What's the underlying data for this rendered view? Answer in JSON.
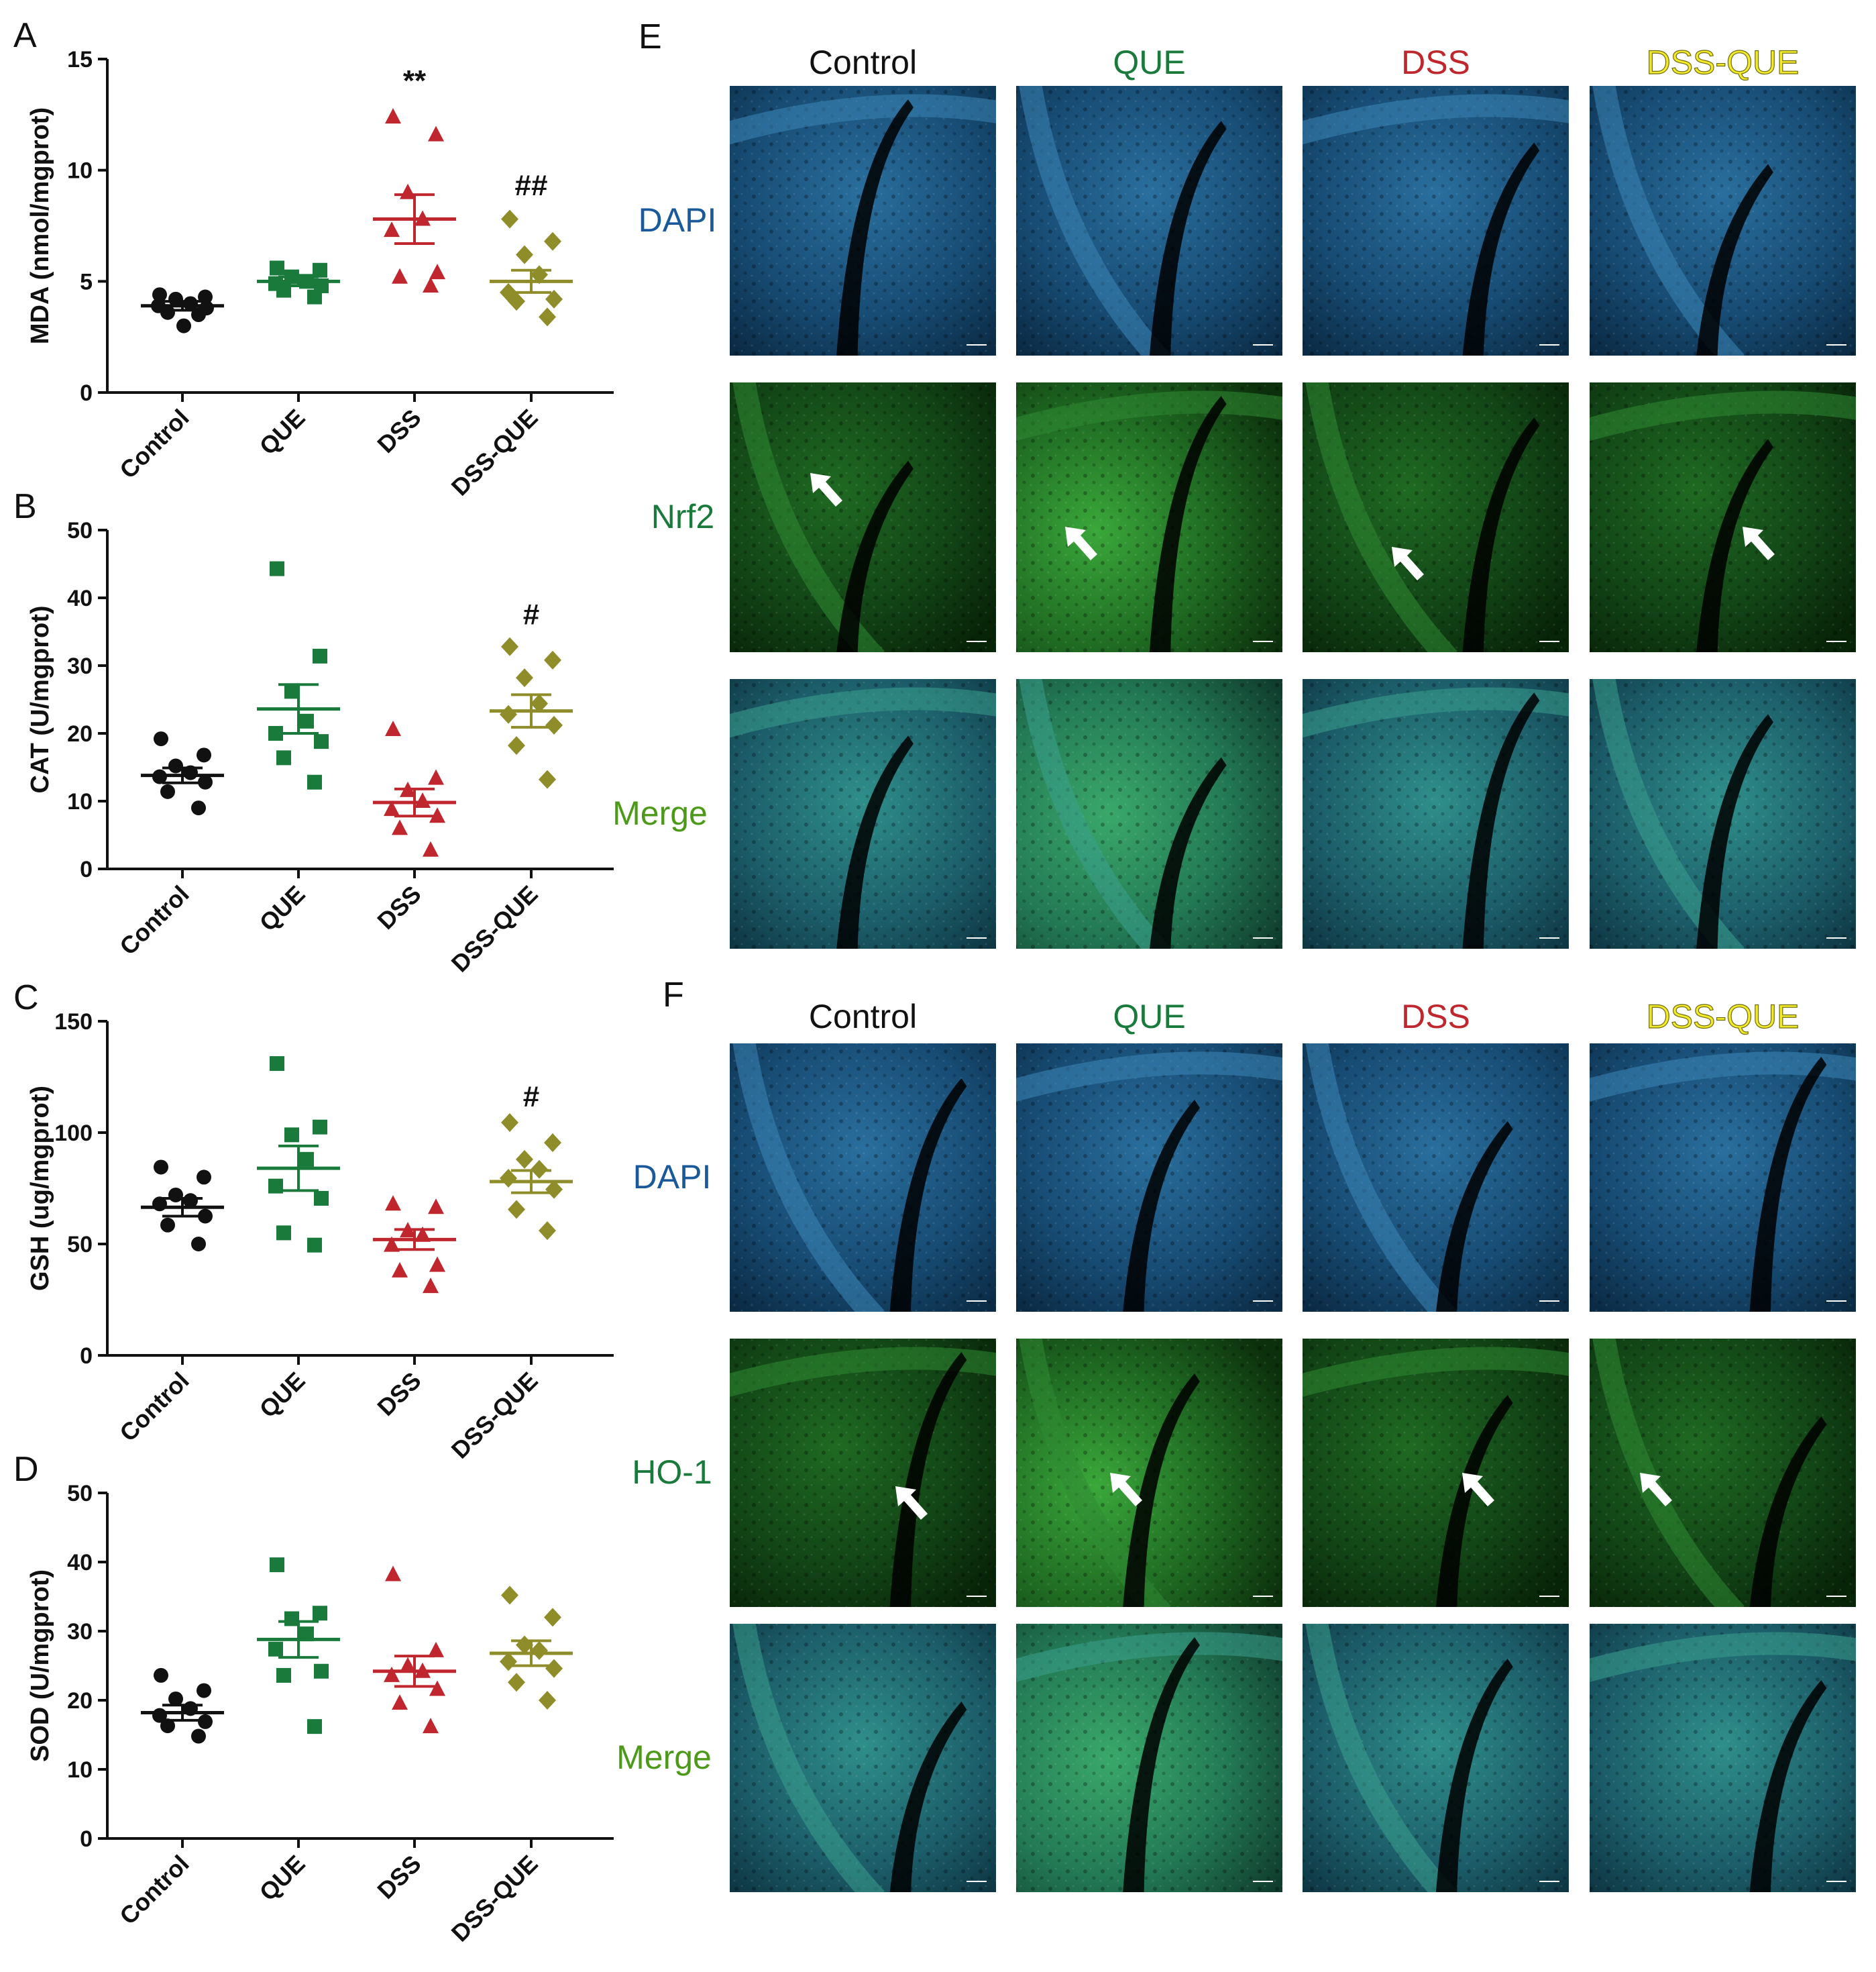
{
  "colors": {
    "Control": "#111111",
    "QUE": "#1a7a3c",
    "DSS": "#c0262d",
    "DSS-QUE": "#8f8c2a",
    "dapi_label": "#1a5a9a",
    "green_label": "#1a7a3c",
    "merge_label": "#4d9a1a"
  },
  "panel_letters": {
    "A": "A",
    "B": "B",
    "C": "C",
    "D": "D",
    "E": "E",
    "F": "F"
  },
  "chart_data": [
    {
      "panel": "A",
      "type": "scatter",
      "ylabel": "MDA (nmol/mgprot)",
      "ylim": [
        0,
        15
      ],
      "yticks": [
        0,
        5,
        10,
        15
      ],
      "categories": [
        "Control",
        "QUE",
        "DSS",
        "DSS-QUE"
      ],
      "markers": [
        "circle",
        "square",
        "triangle",
        "diamond"
      ],
      "points": [
        [
          4.4,
          4.3,
          4.2,
          4.0,
          3.9,
          3.8,
          3.6,
          3.5,
          3.0
        ],
        [
          5.6,
          5.5,
          5.2,
          5.0,
          4.9,
          4.8,
          4.6,
          4.3
        ],
        [
          12.4,
          11.6,
          9.0,
          7.8,
          7.3,
          5.4,
          5.2,
          4.8
        ],
        [
          7.8,
          6.8,
          6.2,
          5.3,
          4.5,
          4.2,
          4.1,
          3.4
        ]
      ],
      "mean": [
        3.9,
        5.0,
        7.8,
        5.0
      ],
      "sem": [
        0.2,
        0.2,
        1.1,
        0.5
      ],
      "annotations": [
        {
          "category": "DSS",
          "text": "**",
          "y": 14.0
        },
        {
          "category": "DSS-QUE",
          "text": "##",
          "y": 9.3
        }
      ]
    },
    {
      "panel": "B",
      "type": "scatter",
      "ylabel": "CAT (U/mgprot)",
      "ylim": [
        0,
        50
      ],
      "yticks": [
        0,
        10,
        20,
        30,
        40,
        50
      ],
      "categories": [
        "Control",
        "QUE",
        "DSS",
        "DSS-QUE"
      ],
      "markers": [
        "circle",
        "square",
        "triangle",
        "diamond"
      ],
      "points": [
        [
          19.2,
          16.8,
          15.2,
          14.2,
          13.6,
          12.8,
          11.4,
          9.0
        ],
        [
          44.3,
          31.4,
          26.2,
          21.8,
          20.0,
          18.8,
          16.4,
          12.8
        ],
        [
          20.6,
          13.4,
          11.6,
          10.0,
          8.8,
          7.8,
          6.0,
          2.8
        ],
        [
          32.8,
          30.8,
          28.2,
          24.4,
          22.8,
          21.2,
          18.2,
          13.2
        ]
      ],
      "mean": [
        13.8,
        23.6,
        9.8,
        23.3
      ],
      "sem": [
        1.1,
        3.6,
        2.0,
        2.4
      ],
      "annotations": [
        {
          "category": "DSS-QUE",
          "text": "#",
          "y": 37.5
        }
      ]
    },
    {
      "panel": "C",
      "type": "scatter",
      "ylabel": "GSH (ug/mgprot)",
      "ylim": [
        0,
        150
      ],
      "yticks": [
        0,
        50,
        100,
        150
      ],
      "categories": [
        "Control",
        "QUE",
        "DSS",
        "DSS-QUE"
      ],
      "markers": [
        "circle",
        "square",
        "triangle",
        "diamond"
      ],
      "points": [
        [
          84.5,
          80.0,
          72.0,
          69.5,
          68.0,
          62.5,
          58.5,
          50.0
        ],
        [
          131.0,
          102.5,
          99.0,
          88.0,
          76.0,
          70.5,
          55.0,
          49.5
        ],
        [
          68.0,
          66.5,
          56.0,
          54.0,
          49.5,
          40.5,
          38.0,
          31.0
        ],
        [
          104.5,
          95.5,
          88.0,
          83.5,
          79.5,
          74.5,
          65.5,
          56.0
        ]
      ],
      "mean": [
        66.5,
        84.0,
        52.0,
        78.0
      ],
      "sem": [
        4.0,
        10.0,
        4.5,
        5.0
      ],
      "annotations": [
        {
          "category": "DSS-QUE",
          "text": "#",
          "y": 116.0
        }
      ]
    },
    {
      "panel": "D",
      "type": "scatter",
      "ylabel": "SOD (U/mgprot)",
      "ylim": [
        0,
        50
      ],
      "yticks": [
        0,
        10,
        20,
        30,
        40,
        50
      ],
      "categories": [
        "Control",
        "QUE",
        "DSS",
        "DSS-QUE"
      ],
      "markers": [
        "circle",
        "square",
        "triangle",
        "diamond"
      ],
      "points": [
        [
          23.6,
          21.4,
          20.2,
          18.8,
          17.8,
          16.9,
          16.3,
          14.8
        ],
        [
          39.6,
          32.6,
          31.8,
          29.6,
          27.4,
          24.2,
          23.6,
          16.2
        ],
        [
          38.2,
          27.2,
          25.0,
          24.2,
          23.6,
          21.6,
          19.6,
          16.2
        ],
        [
          35.2,
          32.0,
          28.0,
          27.2,
          25.6,
          24.6,
          22.6,
          20.0
        ]
      ],
      "mean": [
        18.2,
        28.8,
        24.2,
        26.8
      ],
      "sem": [
        1.1,
        2.6,
        2.2,
        1.8
      ],
      "annotations": []
    }
  ],
  "panel_E": {
    "letter": "E",
    "columns": [
      "Control",
      "QUE",
      "DSS",
      "DSS-QUE"
    ],
    "rows": [
      "DAPI",
      "Nrf2",
      "Merge"
    ],
    "scale_bar": "50 μm"
  },
  "panel_F": {
    "letter": "F",
    "columns": [
      "Control",
      "QUE",
      "DSS",
      "DSS-QUE"
    ],
    "rows": [
      "DAPI",
      "HO-1",
      "Merge"
    ],
    "scale_bar": "50 μm"
  }
}
